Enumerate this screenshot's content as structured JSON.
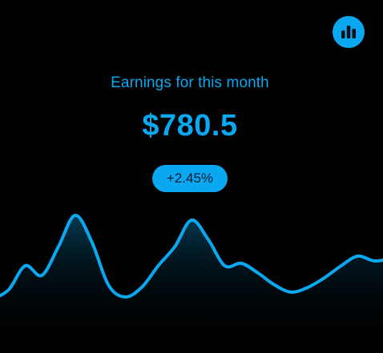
{
  "theme": {
    "accent": "#0aa8f0",
    "background": "#000000",
    "badge_text": "#0a1a33"
  },
  "stats_button": {
    "icon": "bar-chart-icon"
  },
  "earnings": {
    "title": "Earnings for this month",
    "amount": "$780.5",
    "change": "+2.45%"
  },
  "chart_data": {
    "type": "area",
    "title": "",
    "xlabel": "",
    "ylabel": "",
    "grid": false,
    "legend": "none",
    "x": [
      0,
      1,
      2,
      3,
      4,
      5,
      6,
      7,
      8,
      9,
      10,
      11,
      12,
      13,
      14,
      15,
      16,
      17,
      18,
      19,
      20,
      21,
      22,
      23,
      24
    ],
    "values": [
      0.2,
      0.6,
      1.6,
      1.2,
      2.4,
      3.7,
      2.6,
      0.8,
      0.3,
      0.7,
      1.6,
      2.4,
      3.5,
      2.7,
      1.6,
      1.7,
      1.3,
      0.8,
      0.5,
      0.7,
      1.1,
      1.6,
      2.0,
      1.8,
      1.9
    ],
    "ylim": [
      -2,
      5
    ]
  }
}
